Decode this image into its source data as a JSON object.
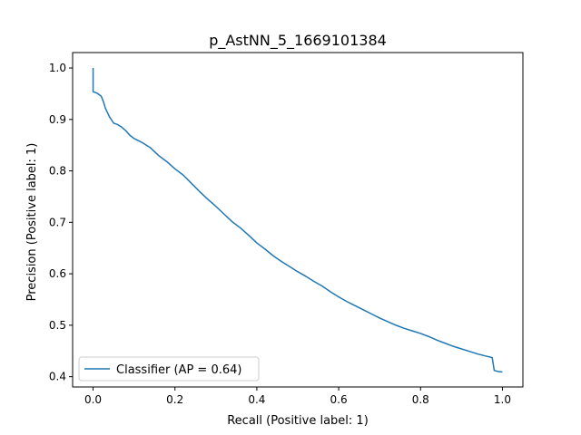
{
  "chart_data": {
    "type": "line",
    "title": "p_AstNN_5_1669101384",
    "xlabel": "Recall (Positive label: 1)",
    "ylabel": "Precision (Positive label: 1)",
    "xlim": [
      -0.05,
      1.05
    ],
    "ylim": [
      0.38,
      1.03
    ],
    "xticks": [
      "0.0",
      "0.2",
      "0.4",
      "0.6",
      "0.8",
      "1.0"
    ],
    "yticks": [
      "0.4",
      "0.5",
      "0.6",
      "0.7",
      "0.8",
      "0.9",
      "1.0"
    ],
    "grid": false,
    "legend_position": "lower-left",
    "series": [
      {
        "name": "Classifier (AP = 0.64)",
        "color": "#1f77b4",
        "x": [
          0.0,
          0.0,
          0.0,
          0.01,
          0.02,
          0.025,
          0.03,
          0.04,
          0.05,
          0.06,
          0.07,
          0.08,
          0.09,
          0.1,
          0.12,
          0.14,
          0.16,
          0.18,
          0.2,
          0.22,
          0.24,
          0.26,
          0.28,
          0.3,
          0.32,
          0.34,
          0.36,
          0.38,
          0.4,
          0.42,
          0.44,
          0.46,
          0.48,
          0.5,
          0.52,
          0.54,
          0.56,
          0.58,
          0.6,
          0.62,
          0.64,
          0.66,
          0.68,
          0.7,
          0.72,
          0.74,
          0.76,
          0.78,
          0.8,
          0.82,
          0.84,
          0.86,
          0.88,
          0.9,
          0.92,
          0.94,
          0.96,
          0.975,
          0.98,
          0.99,
          1.0
        ],
        "y": [
          1.0,
          0.955,
          0.954,
          0.951,
          0.945,
          0.935,
          0.922,
          0.905,
          0.893,
          0.89,
          0.885,
          0.878,
          0.869,
          0.863,
          0.855,
          0.845,
          0.83,
          0.818,
          0.804,
          0.792,
          0.776,
          0.76,
          0.745,
          0.731,
          0.716,
          0.701,
          0.689,
          0.675,
          0.66,
          0.648,
          0.635,
          0.624,
          0.614,
          0.604,
          0.595,
          0.585,
          0.576,
          0.565,
          0.555,
          0.546,
          0.538,
          0.53,
          0.522,
          0.514,
          0.507,
          0.5,
          0.494,
          0.489,
          0.484,
          0.478,
          0.471,
          0.465,
          0.459,
          0.454,
          0.449,
          0.444,
          0.44,
          0.437,
          0.412,
          0.41,
          0.409
        ]
      }
    ]
  }
}
